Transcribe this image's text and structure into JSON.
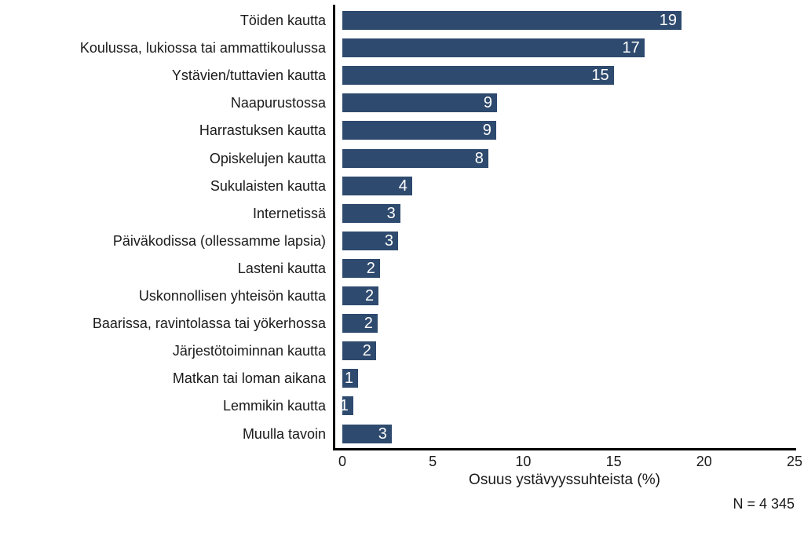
{
  "chart_data": {
    "type": "bar",
    "orientation": "horizontal",
    "title": "",
    "xlabel": "Osuus ystävyyssuhteista (%)",
    "ylabel": "",
    "xlim": [
      0,
      25
    ],
    "xticks": [
      "0",
      "5",
      "10",
      "15",
      "20",
      "25"
    ],
    "grid": false,
    "legend": null,
    "categories": [
      "Töiden kautta",
      "Koulussa, lukiossa tai ammattikoulussa",
      "Ystävien/tuttavien kautta",
      "Naapurustossa",
      "Harrastuksen kautta",
      "Opiskelujen kautta",
      "Sukulaisten kautta",
      "Internetissä",
      "Päiväkodissa (ollessamme lapsia)",
      "Lasteni kautta",
      "Uskonnollisen yhteisön kautta",
      "Baarissa, ravintolassa tai yökerhossa",
      "Järjestötoiminnan kautta",
      "Matkan tai loman aikana",
      "Lemmikin kautta",
      "Muulla tavoin"
    ],
    "values": [
      18.75,
      16.7,
      15.0,
      8.55,
      8.5,
      8.07,
      3.86,
      3.2,
      3.08,
      2.08,
      2.0,
      1.95,
      1.86,
      0.87,
      0.6,
      2.73
    ],
    "data_labels": [
      "19",
      "17",
      "15",
      "9",
      "9",
      "8",
      "4",
      "3",
      "3",
      "2",
      "2",
      "2",
      "2",
      "1",
      "1",
      "3"
    ],
    "bar_color": "#2e4a6e",
    "annotation": "N = 4 345"
  }
}
